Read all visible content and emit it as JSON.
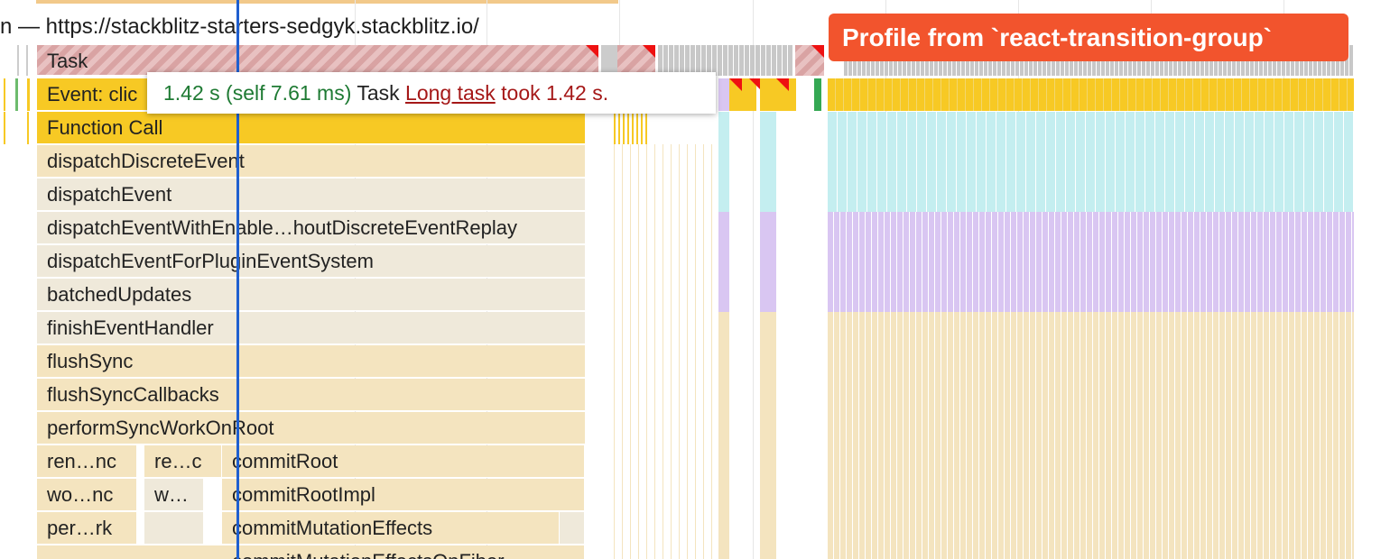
{
  "header": {
    "url_label": "n — https://stackblitz-starters-sedgyk.stackblitz.io/"
  },
  "badge": {
    "text": "Profile from `react-transition-group`"
  },
  "tooltip": {
    "duration": "1.42 s (self 7.61 ms)",
    "name": "Task",
    "link": "Long task",
    "warning_suffix": "took 1.42 s."
  },
  "flame": {
    "task": "Task",
    "event": "Event: clic",
    "function_call": "Function Call",
    "frames": [
      "dispatchDiscreteEvent",
      "dispatchEvent",
      "dispatchEventWithEnable…houtDiscreteEventReplay",
      "dispatchEventForPluginEventSystem",
      "batchedUpdates",
      "finishEventHandler",
      "flushSync",
      "flushSyncCallbacks",
      "performSyncWorkOnRoot"
    ],
    "split_rows": [
      {
        "a": "ren…nc",
        "b": "re…c",
        "c": "commitRoot"
      },
      {
        "a": "wo…nc",
        "b": "w…",
        "c": "commitRootImpl"
      },
      {
        "a": "per…rk",
        "b": "",
        "c": "commitMutationEffects"
      }
    ],
    "last_partial": "commitMutationEffectsOnFiber"
  },
  "colors": {
    "task_stripe": "#d9a3a3",
    "event_yellow": "#f7c924",
    "frame_tan": "#f4e4bf",
    "frame_dim": "#efe9da",
    "cyan": "#c4eef0",
    "lavender": "#d9c6f2",
    "badge": "#f2542d",
    "cursor": "#1f5fcf",
    "long_task_red": "#ee1111"
  }
}
